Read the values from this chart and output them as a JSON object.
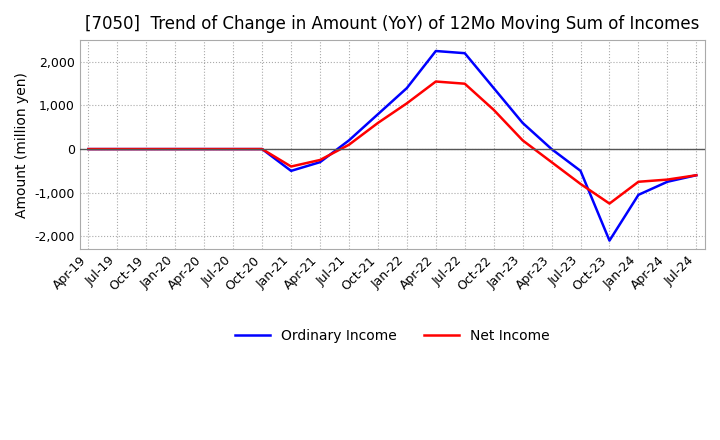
{
  "title": "[7050]  Trend of Change in Amount (YoY) of 12Mo Moving Sum of Incomes",
  "ylabel": "Amount (million yen)",
  "ylim": [
    -2300,
    2500
  ],
  "yticks": [
    -2000,
    -1000,
    0,
    1000,
    2000
  ],
  "x_labels": [
    "Apr-19",
    "Jul-19",
    "Oct-19",
    "Jan-20",
    "Apr-20",
    "Jul-20",
    "Oct-20",
    "Jan-21",
    "Apr-21",
    "Jul-21",
    "Oct-21",
    "Jan-22",
    "Apr-22",
    "Jul-22",
    "Oct-22",
    "Jan-23",
    "Apr-23",
    "Jul-23",
    "Oct-23",
    "Jan-24",
    "Apr-24",
    "Jul-24"
  ],
  "ordinary_income": [
    0,
    0,
    0,
    0,
    0,
    0,
    0,
    -500,
    -300,
    200,
    800,
    1400,
    2250,
    2200,
    1400,
    600,
    0,
    -500,
    -2100,
    -1050,
    -750,
    -600
  ],
  "net_income": [
    0,
    0,
    0,
    0,
    0,
    0,
    0,
    -400,
    -250,
    100,
    600,
    1050,
    1550,
    1500,
    900,
    200,
    -300,
    -800,
    -1250,
    -750,
    -700,
    -600
  ],
  "ordinary_color": "#0000ff",
  "net_color": "#ff0000",
  "background_color": "#ffffff",
  "grid_color": "#aaaaaa",
  "title_fontsize": 12,
  "label_fontsize": 10
}
